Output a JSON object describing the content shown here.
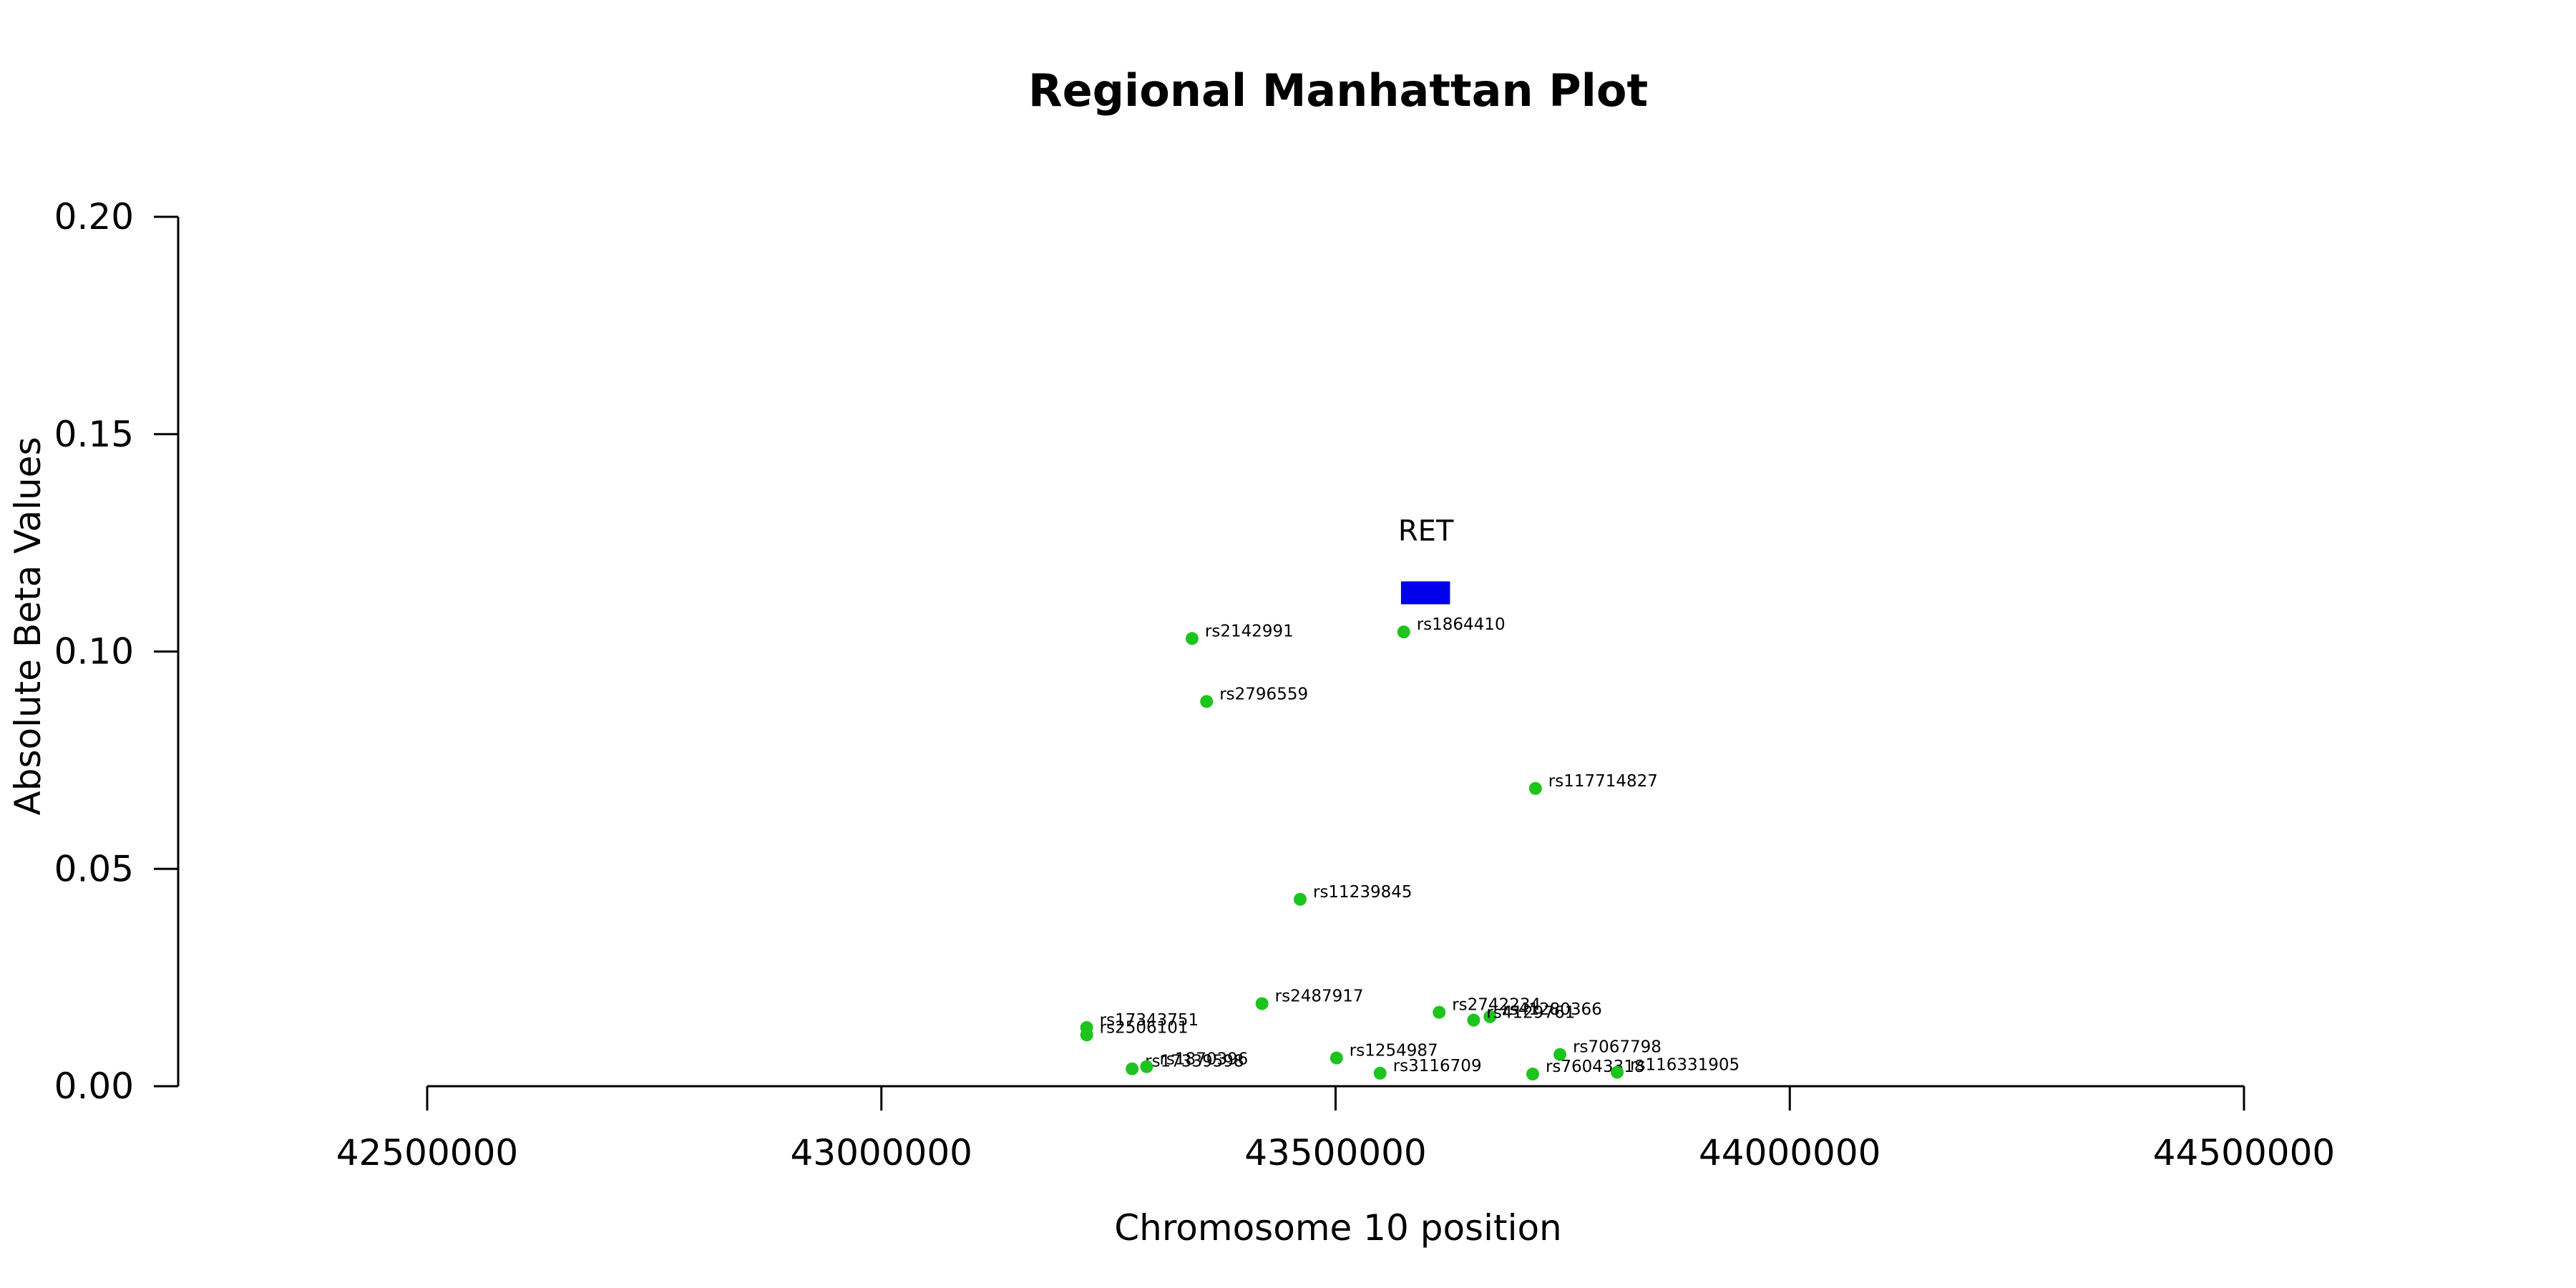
{
  "chart_data": {
    "type": "scatter",
    "title": "Regional Manhattan Plot",
    "xlabel": "Chromosome 10 position",
    "ylabel": "Absolute Beta Values",
    "xlim": [
      42500000,
      44500000
    ],
    "ylim": [
      0,
      0.2
    ],
    "x_ticks": [
      42500000,
      43000000,
      43500000,
      44000000,
      44500000
    ],
    "x_tick_labels": [
      "42500000",
      "43000000",
      "43500000",
      "44000000",
      "44500000"
    ],
    "y_ticks": [
      0,
      0.05,
      0.1,
      0.15,
      0.2
    ],
    "y_tick_labels": [
      "0.00",
      "0.05",
      "0.10",
      "0.15",
      "0.20"
    ],
    "grid": false,
    "point_color": "#1ec41e",
    "gene_color": "#0000ee",
    "gene": {
      "label": "RET",
      "start": 43572000,
      "end": 43626000,
      "y": 0.1135
    },
    "points": [
      {
        "label": "rs2142991",
        "x": 43342000,
        "y": 0.103
      },
      {
        "label": "rs1864410",
        "x": 43575000,
        "y": 0.1045
      },
      {
        "label": "rs2796559",
        "x": 43358000,
        "y": 0.0885
      },
      {
        "label": "rs117714827",
        "x": 43720000,
        "y": 0.0685
      },
      {
        "label": "rs11239845",
        "x": 43461000,
        "y": 0.043
      },
      {
        "label": "rs2487917",
        "x": 43419000,
        "y": 0.019
      },
      {
        "label": "rs2742234",
        "x": 43614000,
        "y": 0.017
      },
      {
        "label": "rs41280366",
        "x": 43670000,
        "y": 0.016
      },
      {
        "label": "rs4129761",
        "x": 43652000,
        "y": 0.0152
      },
      {
        "label": "rs17343751",
        "x": 43226000,
        "y": 0.0135
      },
      {
        "label": "rs2506101",
        "x": 43226000,
        "y": 0.0118
      },
      {
        "label": "rs1254987",
        "x": 43501000,
        "y": 0.0065
      },
      {
        "label": "rs7067798",
        "x": 43747000,
        "y": 0.0073
      },
      {
        "label": "rs17339598",
        "x": 43276000,
        "y": 0.004
      },
      {
        "label": "rs1870396",
        "x": 43292000,
        "y": 0.0045
      },
      {
        "label": "rs3116709",
        "x": 43549000,
        "y": 0.003
      },
      {
        "label": "rs76043318",
        "x": 43717000,
        "y": 0.0028
      },
      {
        "label": "rs116331905",
        "x": 43810000,
        "y": 0.0032
      }
    ]
  }
}
